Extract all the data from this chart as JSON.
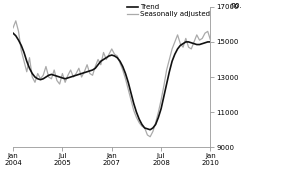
{
  "title": "",
  "ylabel": "no.",
  "ylim": [
    9000,
    17000
  ],
  "yticks": [
    9000,
    11000,
    13000,
    15000,
    17000
  ],
  "xtick_labels": [
    "Jan\n2004",
    "Jul\n2005",
    "Jan\n2007",
    "Jul\n2008",
    "Jan\n2010"
  ],
  "xtick_positions": [
    0,
    18,
    36,
    54,
    72
  ],
  "trend_color": "#111111",
  "seasonal_color": "#aaaaaa",
  "legend_entries": [
    "Trend",
    "Seasonally adjusted"
  ],
  "background_color": "#ffffff",
  "trend_linewidth": 1.2,
  "seasonal_linewidth": 0.9,
  "trend_data": [
    15500,
    15350,
    15100,
    14800,
    14400,
    13900,
    13500,
    13200,
    13000,
    12900,
    12850,
    12900,
    13000,
    13100,
    13150,
    13100,
    13050,
    13000,
    12950,
    12900,
    12950,
    13000,
    13050,
    13100,
    13150,
    13200,
    13250,
    13300,
    13350,
    13400,
    13500,
    13700,
    13900,
    14000,
    14100,
    14200,
    14250,
    14200,
    14100,
    13900,
    13600,
    13200,
    12700,
    12100,
    11500,
    11000,
    10600,
    10300,
    10100,
    10050,
    10000,
    10100,
    10300,
    10700,
    11200,
    11900,
    12600,
    13300,
    13900,
    14300,
    14600,
    14800,
    14900,
    15000,
    15000,
    14950,
    14900,
    14850,
    14850,
    14900,
    14950,
    15000,
    15000
  ],
  "seasonal_data": [
    15800,
    16200,
    15600,
    14500,
    13900,
    13300,
    14100,
    13000,
    12700,
    13200,
    12900,
    13100,
    13600,
    13000,
    12900,
    13400,
    12800,
    12600,
    13200,
    12700,
    13100,
    13400,
    13000,
    13200,
    13500,
    13000,
    13300,
    13700,
    13200,
    13100,
    13600,
    14000,
    13700,
    14400,
    14000,
    14300,
    14600,
    14300,
    14200,
    13800,
    13400,
    12900,
    12300,
    11700,
    11100,
    10700,
    10400,
    10200,
    10100,
    9700,
    9600,
    9900,
    10400,
    11000,
    11700,
    12500,
    13400,
    14000,
    14600,
    15000,
    15400,
    14900,
    14700,
    15200,
    14700,
    14600,
    15000,
    15400,
    15100,
    15200,
    15500,
    15600,
    15100
  ]
}
